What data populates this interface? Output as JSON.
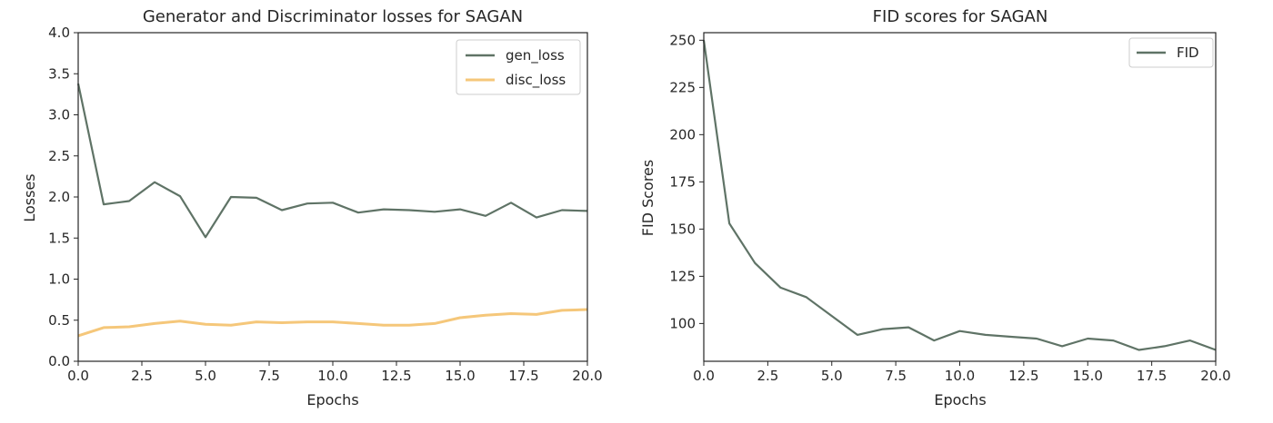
{
  "chart_data": [
    {
      "type": "line",
      "title": "Generator and Discriminator losses for SAGAN",
      "xlabel": "Epochs",
      "ylabel": "Losses",
      "xlim": [
        0,
        20
      ],
      "ylim": [
        0,
        4
      ],
      "xticks": [
        "0.0",
        "2.5",
        "5.0",
        "7.5",
        "10.0",
        "12.5",
        "15.0",
        "17.5",
        "20.0"
      ],
      "yticks": [
        "0.0",
        "0.5",
        "1.0",
        "1.5",
        "2.0",
        "2.5",
        "3.0",
        "3.5",
        "4.0"
      ],
      "legend_position": "top-right",
      "grid": false,
      "x": [
        0,
        1,
        2,
        3,
        4,
        5,
        6,
        7,
        8,
        9,
        10,
        11,
        12,
        13,
        14,
        15,
        16,
        17,
        18,
        19,
        20
      ],
      "series": [
        {
          "name": "gen_loss",
          "color": "#5f7366",
          "values": [
            3.38,
            1.91,
            1.95,
            2.18,
            2.01,
            1.51,
            2.0,
            1.99,
            1.84,
            1.92,
            1.93,
            1.81,
            1.85,
            1.84,
            1.82,
            1.85,
            1.77,
            1.93,
            1.75,
            1.84,
            1.83
          ]
        },
        {
          "name": "disc_loss",
          "color": "#f5c77a",
          "values": [
            0.31,
            0.41,
            0.42,
            0.46,
            0.49,
            0.45,
            0.44,
            0.48,
            0.47,
            0.48,
            0.48,
            0.46,
            0.44,
            0.44,
            0.46,
            0.53,
            0.56,
            0.58,
            0.57,
            0.62,
            0.63
          ]
        }
      ]
    },
    {
      "type": "line",
      "title": "FID scores for SAGAN",
      "xlabel": "Epochs",
      "ylabel": "FID Scores",
      "xlim": [
        0,
        20
      ],
      "ylim": [
        80,
        254
      ],
      "xticks": [
        "0.0",
        "2.5",
        "5.0",
        "7.5",
        "10.0",
        "12.5",
        "15.0",
        "17.5",
        "20.0"
      ],
      "yticks": [
        "100",
        "125",
        "150",
        "175",
        "200",
        "225",
        "250"
      ],
      "legend_position": "top-right",
      "grid": false,
      "x": [
        0,
        1,
        2,
        3,
        4,
        5,
        6,
        7,
        8,
        9,
        10,
        11,
        12,
        13,
        14,
        15,
        16,
        17,
        18,
        19,
        20
      ],
      "series": [
        {
          "name": "FID",
          "color": "#5f7366",
          "values": [
            250,
            153,
            132,
            119,
            114,
            104,
            94,
            97,
            98,
            91,
            96,
            94,
            93,
            92,
            88,
            92,
            91,
            86,
            88,
            91,
            86
          ]
        }
      ]
    }
  ]
}
